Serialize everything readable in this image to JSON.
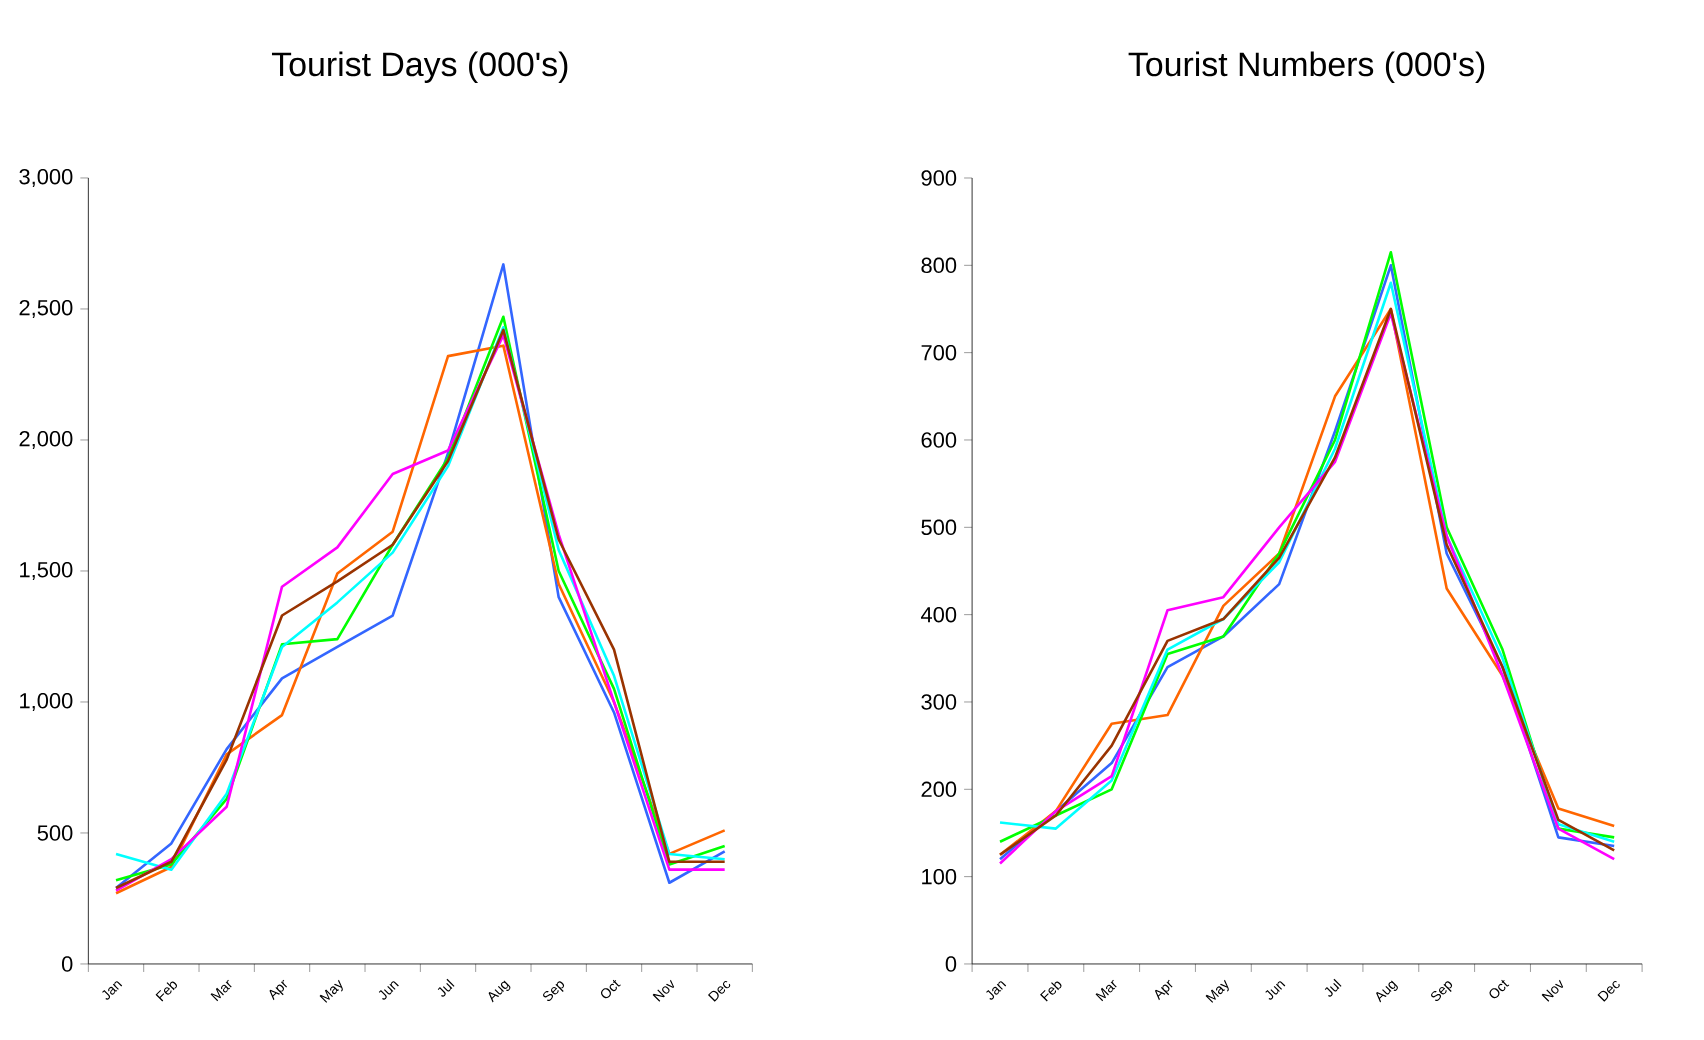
{
  "chart_data": [
    {
      "type": "line",
      "title": "Tourist Days (000's)",
      "categories": [
        "Jan",
        "Feb",
        "Mar",
        "Apr",
        "May",
        "Jun",
        "Jul",
        "Aug",
        "Sep",
        "Oct",
        "Nov",
        "Dec"
      ],
      "ylim": [
        0,
        3000
      ],
      "yticks": [
        0,
        500,
        {
          "value": 1000,
          "label": "1,000"
        },
        {
          "value": 1500,
          "label": "1,500"
        },
        {
          "value": 2000,
          "label": "2,000"
        },
        {
          "value": 2500,
          "label": "2,500"
        },
        {
          "value": 3000,
          "label": "3,000"
        }
      ],
      "grid": false,
      "series": [
        {
          "color": "#3366ff",
          "values": [
            290,
            460,
            820,
            1090,
            1210,
            1330,
            1950,
            2670,
            1400,
            960,
            310,
            430
          ]
        },
        {
          "color": "#ff6600",
          "values": [
            270,
            370,
            800,
            950,
            1490,
            1650,
            2320,
            2360,
            1450,
            1000,
            420,
            510
          ]
        },
        {
          "color": "#00ff00",
          "values": [
            320,
            380,
            630,
            1220,
            1240,
            1600,
            1930,
            2470,
            1500,
            1050,
            380,
            450
          ]
        },
        {
          "color": "#00ffff",
          "values": [
            420,
            360,
            650,
            1210,
            1380,
            1570,
            1900,
            2430,
            1580,
            1100,
            420,
            400
          ]
        },
        {
          "color": "#ff00ff",
          "values": [
            280,
            400,
            600,
            1440,
            1590,
            1870,
            1960,
            2400,
            1640,
            1000,
            360,
            360
          ]
        },
        {
          "color": "#993300",
          "values": [
            290,
            390,
            780,
            1330,
            1460,
            1600,
            1920,
            2420,
            1620,
            1200,
            390,
            390
          ]
        }
      ]
    },
    {
      "type": "line",
      "title": "Tourist Numbers (000's)",
      "categories": [
        "Jan",
        "Feb",
        "Mar",
        "Apr",
        "May",
        "Jun",
        "Jul",
        "Aug",
        "Sep",
        "Oct",
        "Nov",
        "Dec"
      ],
      "ylim": [
        0,
        900
      ],
      "yticks": [
        0,
        100,
        200,
        300,
        400,
        500,
        600,
        700,
        800,
        900
      ],
      "grid": false,
      "series": [
        {
          "color": "#3366ff",
          "values": [
            120,
            175,
            230,
            340,
            375,
            435,
            610,
            800,
            470,
            340,
            145,
            135
          ]
        },
        {
          "color": "#ff6600",
          "values": [
            125,
            175,
            275,
            285,
            410,
            470,
            650,
            750,
            430,
            330,
            178,
            158
          ]
        },
        {
          "color": "#00ff00",
          "values": [
            140,
            170,
            200,
            355,
            375,
            470,
            600,
            815,
            500,
            360,
            155,
            145
          ]
        },
        {
          "color": "#00ffff",
          "values": [
            162,
            155,
            210,
            360,
            395,
            460,
            590,
            780,
            490,
            350,
            160,
            140
          ]
        },
        {
          "color": "#ff00ff",
          "values": [
            115,
            175,
            215,
            405,
            420,
            500,
            575,
            745,
            490,
            330,
            155,
            120
          ]
        },
        {
          "color": "#993300",
          "values": [
            125,
            170,
            250,
            370,
            395,
            465,
            580,
            750,
            480,
            340,
            165,
            130
          ]
        }
      ]
    }
  ]
}
